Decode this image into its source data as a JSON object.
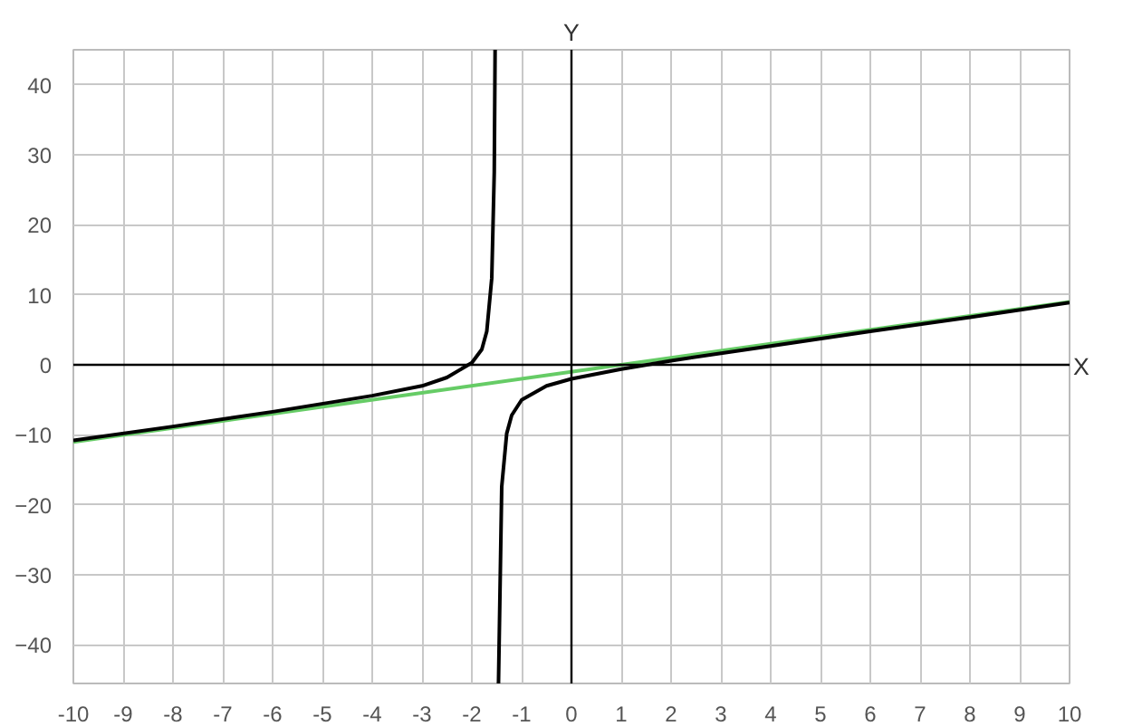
{
  "chart_data": {
    "type": "line",
    "xlabel": "X",
    "ylabel": "Y",
    "xlim": [
      -10,
      10
    ],
    "ylim": [
      -45.5,
      45
    ],
    "xticks": [
      -10,
      -9,
      -8,
      -7,
      -6,
      -5,
      -4,
      -3,
      -2,
      -1,
      0,
      1,
      2,
      3,
      4,
      5,
      6,
      7,
      8,
      9,
      10
    ],
    "yticks": [
      -40,
      -30,
      -20,
      -10,
      0,
      10,
      20,
      30,
      40
    ],
    "grid": true,
    "marker": "none",
    "line_style": "solid",
    "series": [
      {
        "color": "#66cc66",
        "x": [
          -10,
          10
        ],
        "values": [
          -11,
          9
        ]
      },
      {
        "color": "#000000",
        "x": [
          -10,
          -8,
          -6,
          -4,
          -3,
          -2.5,
          -2,
          -1.8,
          -1.7,
          -1.6,
          -1.55,
          -1.533,
          -1.5,
          -1.465,
          -1.4,
          -1.3,
          -1.2,
          -1,
          -0.5,
          0,
          1,
          2,
          4,
          6,
          8,
          10
        ],
        "values": [
          -10.8,
          -8.8,
          -6.7,
          -4.4,
          -3,
          -1.8,
          0.3,
          2.2,
          4.8,
          12.4,
          27.5,
          45,
          null,
          -45.5,
          -17.4,
          -9.8,
          -7.2,
          -5,
          -3,
          -2,
          -0.6,
          0.6,
          2.7,
          4.8,
          6.8,
          8.9
        ]
      }
    ]
  }
}
